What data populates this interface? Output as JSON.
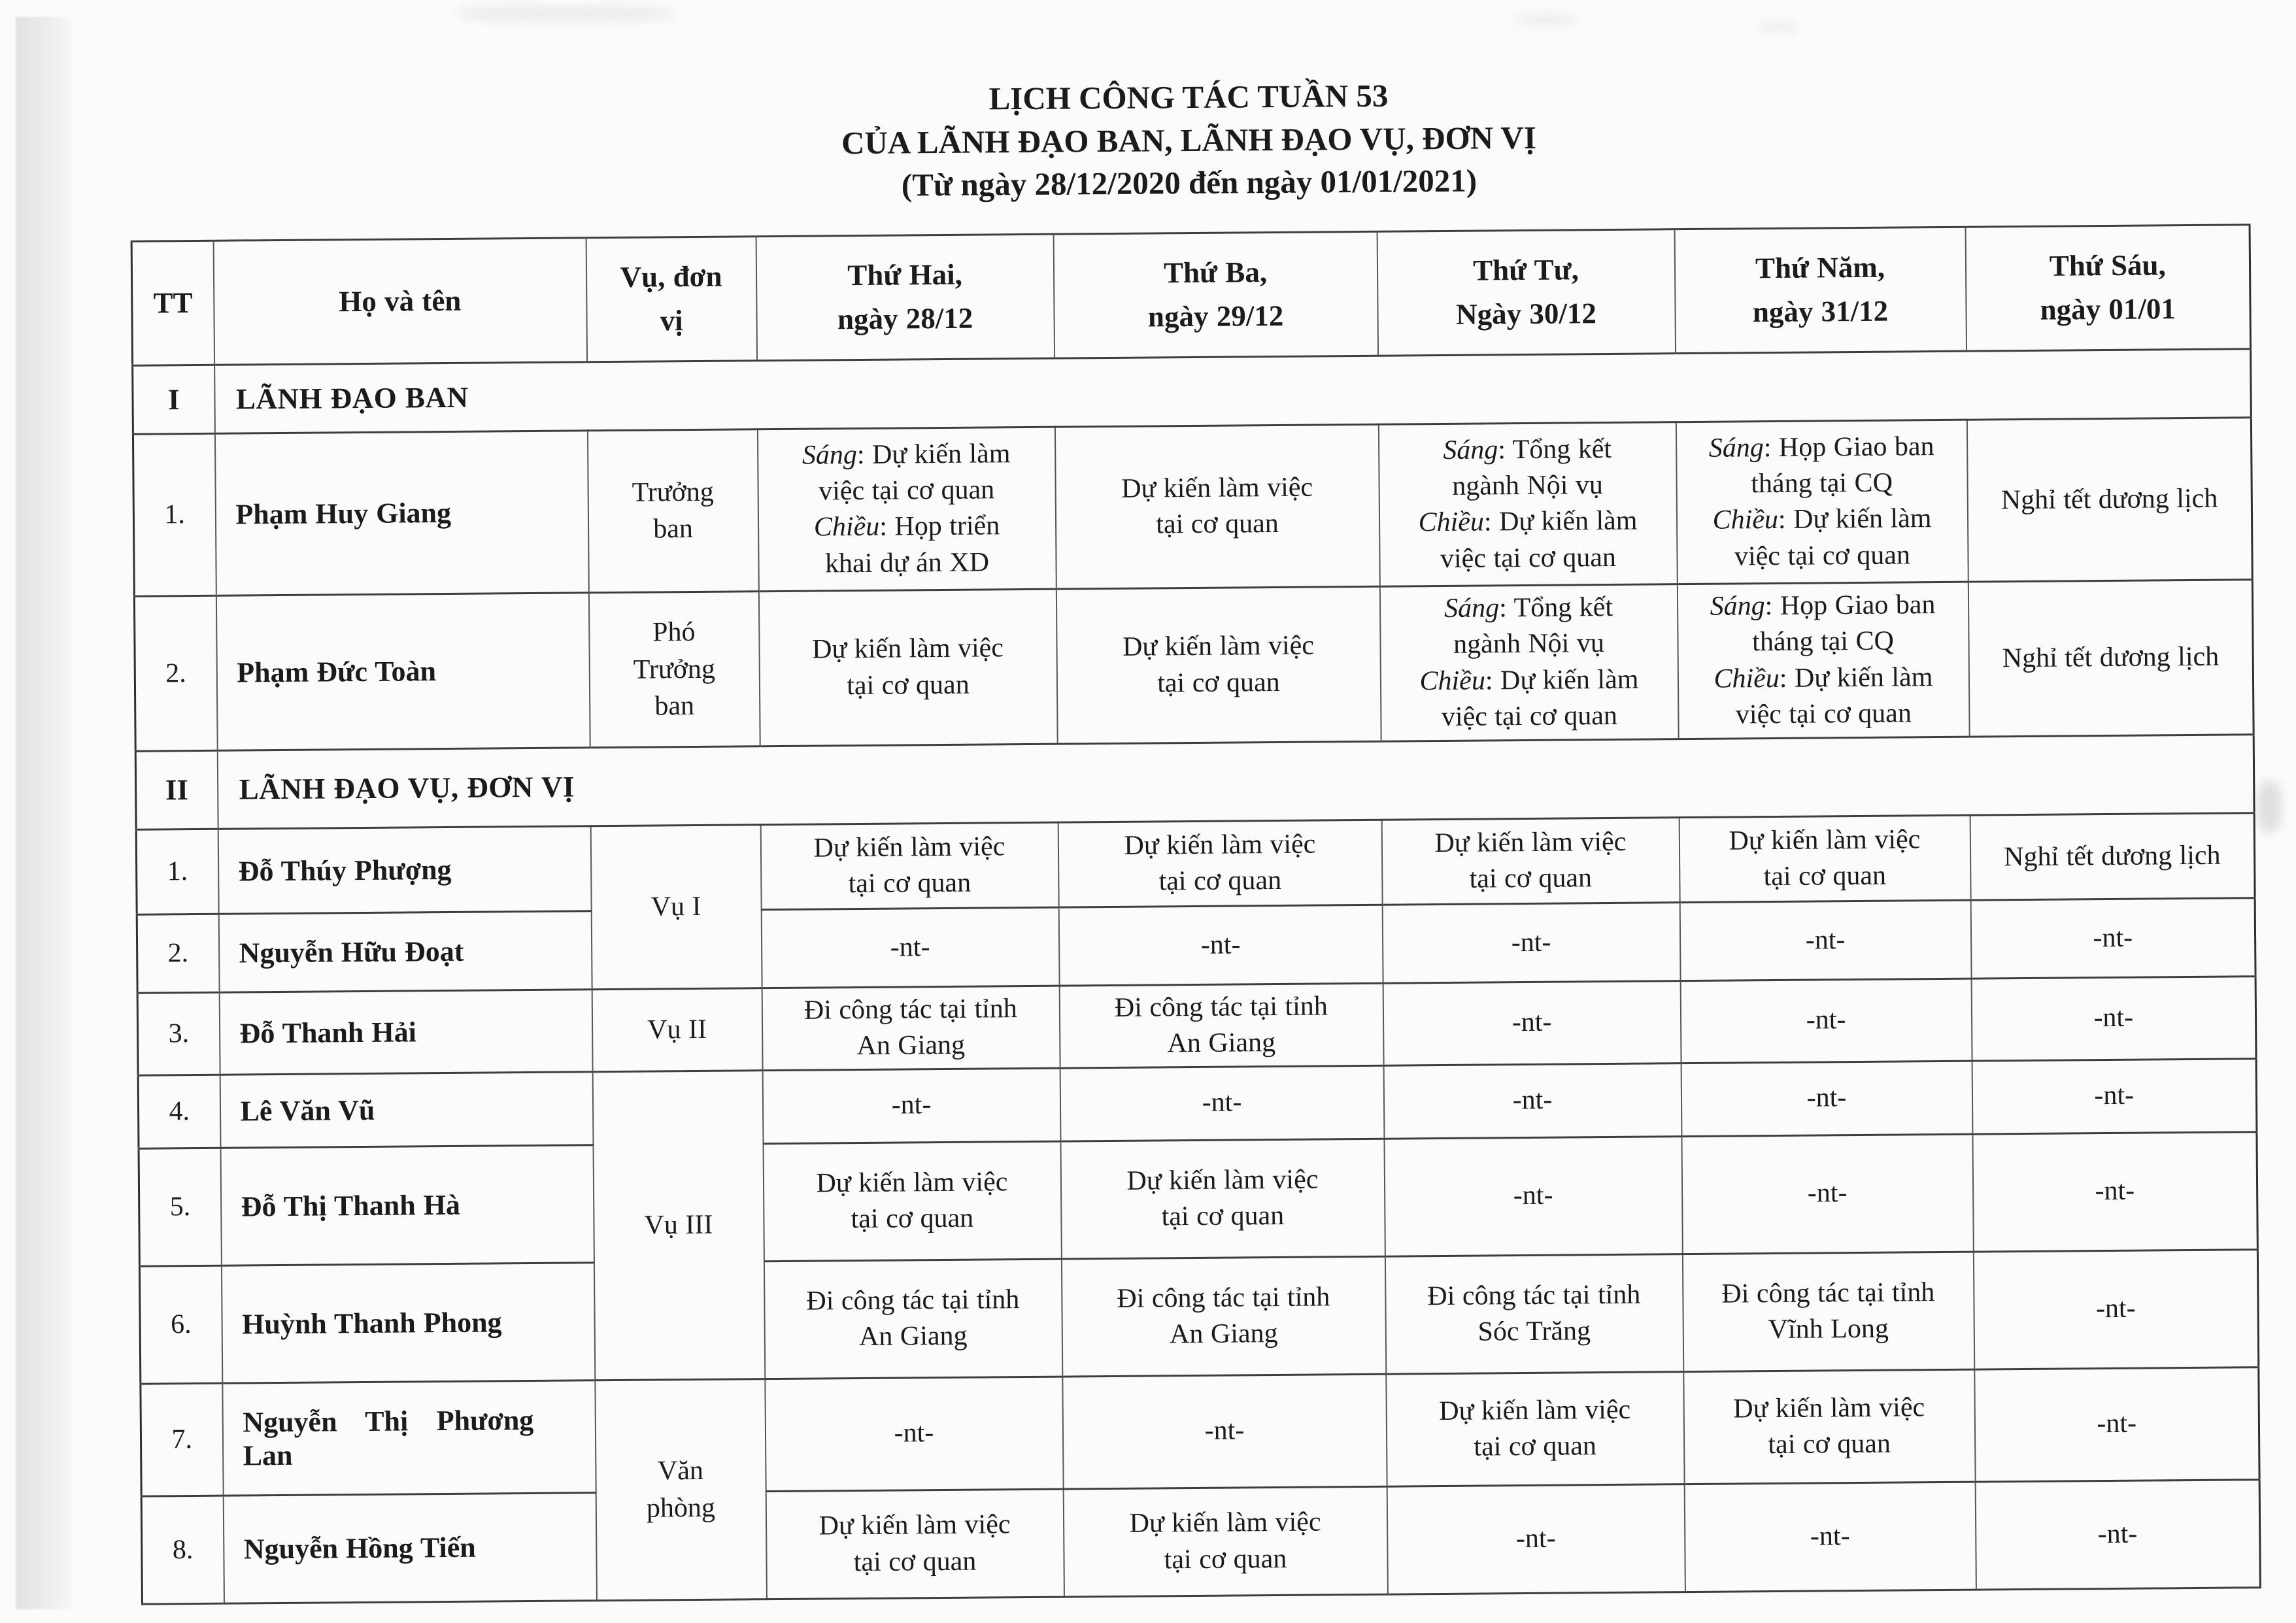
{
  "page": {
    "title_line1": "LỊCH CÔNG TÁC TUẦN 53",
    "title_line2": "CỦA LÃNH ĐẠO BAN, LÃNH ĐẠO VỤ, ĐƠN VỊ",
    "title_line3": "(Từ ngày 28/12/2020 đến ngày 01/01/2021)"
  },
  "colors": {
    "ink": "#1b1b1b",
    "paper": "#fbfbfa",
    "border": "#3e3e3e"
  },
  "table": {
    "headers": {
      "tt": "TT",
      "name": "Họ và tên",
      "unit": "Vụ, đơn vị",
      "days": [
        {
          "line1": "Thứ Hai,",
          "line2": "ngày 28/12"
        },
        {
          "line1": "Thứ Ba,",
          "line2": "ngày 29/12"
        },
        {
          "line1": "Thứ Tư,",
          "line2": "Ngày 30/12"
        },
        {
          "line1": "Thứ Năm,",
          "line2": "ngày 31/12"
        },
        {
          "line1": "Thứ Sáu,",
          "line2": "ngày 01/01"
        }
      ]
    },
    "sections": [
      {
        "index": "I",
        "title": "LÃNH ĐẠO BAN",
        "rows": [
          {
            "tt": "1.",
            "name": "Phạm Huy Giang",
            "unit": {
              "label": "Trưởng ban",
              "rowspan": 1
            },
            "days": [
              {
                "am_label": "Sáng",
                "am": "Dự kiến làm việc tại cơ quan",
                "pm_label": "Chiều",
                "pm": "Họp triển khai dự án XD"
              },
              "Dự kiến làm việc tại cơ quan",
              {
                "am_label": "Sáng",
                "am": "Tổng kết ngành Nội vụ",
                "pm_label": "Chiều",
                "pm": "Dự kiến làm việc tại cơ quan"
              },
              {
                "am_label": "Sáng",
                "am": "Họp Giao ban tháng tại CQ",
                "pm_label": "Chiều",
                "pm": "Dự kiến làm việc tại cơ quan"
              },
              "Nghỉ tết dương lịch"
            ]
          },
          {
            "tt": "2.",
            "name": "Phạm Đức Toàn",
            "unit": {
              "label": "Phó Trưởng ban",
              "rowspan": 1
            },
            "days": [
              "Dự kiến làm việc tại cơ quan",
              "Dự kiến làm việc tại cơ quan",
              {
                "am_label": "Sáng",
                "am": "Tổng kết ngành Nội vụ",
                "pm_label": "Chiều",
                "pm": "Dự kiến làm việc tại cơ quan"
              },
              {
                "am_label": "Sáng",
                "am": "Họp Giao ban tháng tại CQ",
                "pm_label": "Chiều",
                "pm": "Dự kiến làm việc tại cơ quan"
              },
              "Nghỉ tết dương lịch"
            ]
          }
        ]
      },
      {
        "index": "II",
        "title": "LÃNH ĐẠO VỤ, ĐƠN VỊ",
        "rows": [
          {
            "tt": "1.",
            "name": "Đỗ Thúy Phượng",
            "unit": {
              "label": "Vụ I",
              "rowspan": 2
            },
            "days": [
              "Dự kiến làm việc tại cơ quan",
              "Dự kiến làm việc tại cơ quan",
              "Dự kiến làm việc tại cơ quan",
              "Dự kiến làm việc tại cơ quan",
              "Nghỉ tết dương lịch"
            ]
          },
          {
            "tt": "2.",
            "name": "Nguyễn Hữu Đoạt",
            "unit": null,
            "days": [
              "-nt-",
              "-nt-",
              "-nt-",
              "-nt-",
              "-nt-"
            ]
          },
          {
            "tt": "3.",
            "name": "Đỗ Thanh Hải",
            "unit": {
              "label": "Vụ II",
              "rowspan": 1
            },
            "days": [
              "Đi công tác tại tỉnh An Giang",
              "Đi công tác tại tỉnh An Giang",
              "-nt-",
              "-nt-",
              "-nt-"
            ]
          },
          {
            "tt": "4.",
            "name": "Lê Văn Vũ",
            "unit": {
              "label": "Vụ III",
              "rowspan": 3
            },
            "days": [
              "-nt-",
              "-nt-",
              "-nt-",
              "-nt-",
              "-nt-"
            ]
          },
          {
            "tt": "5.",
            "name": "Đỗ Thị Thanh Hà",
            "unit": null,
            "days": [
              "Dự kiến làm việc tại cơ quan",
              "Dự kiến làm việc tại cơ quan",
              "-nt-",
              "-nt-",
              "-nt-"
            ]
          },
          {
            "tt": "6.",
            "name": "Huỳnh Thanh Phong",
            "unit": null,
            "days": [
              "Đi công tác tại tỉnh An Giang",
              "Đi công tác tại tỉnh An Giang",
              "Đi công tác tại tỉnh Sóc Trăng",
              "Đi công tác tại tỉnh Vĩnh Long",
              "-nt-"
            ]
          },
          {
            "tt": "7.",
            "name": "Nguyễn Thị Phương Lan",
            "unit": {
              "label": "Văn phòng",
              "rowspan": 2
            },
            "days": [
              "-nt-",
              "-nt-",
              "Dự kiến làm việc tại cơ quan",
              "Dự kiến làm việc tại cơ quan",
              "-nt-"
            ]
          },
          {
            "tt": "8.",
            "name": "Nguyễn Hồng Tiến",
            "unit": null,
            "days": [
              "Dự kiến làm việc tại cơ quan",
              "Dự kiến làm việc tại cơ quan",
              "-nt-",
              "-nt-",
              "-nt-"
            ]
          }
        ]
      }
    ]
  }
}
